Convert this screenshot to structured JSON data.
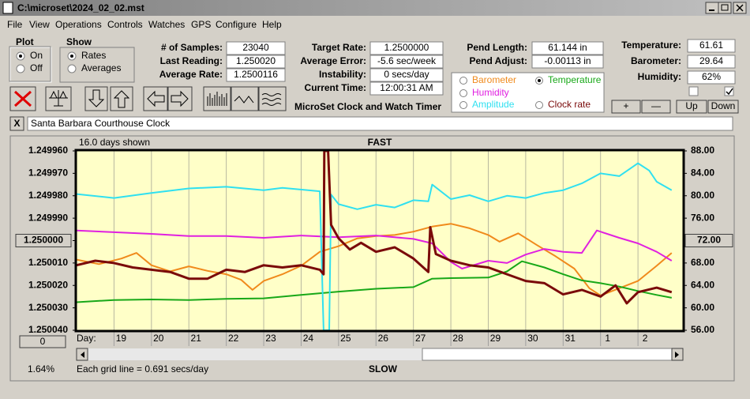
{
  "window": {
    "title": "C:\\microset\\2024_02_02.mst",
    "menu": [
      "File",
      "View",
      "Operations",
      "Controls",
      "Watches",
      "GPS",
      "Configure",
      "Help"
    ]
  },
  "plot_group": {
    "title": "Plot",
    "options": [
      "On",
      "Off"
    ]
  },
  "show_group": {
    "title": "Show",
    "options": [
      "Rates",
      "Averages"
    ]
  },
  "stats": [
    [
      "# of Samples:",
      "23040"
    ],
    [
      "Last Reading:",
      "1.250020"
    ],
    [
      "Average Rate:",
      "1.2500116"
    ]
  ],
  "rates": [
    [
      "Target Rate:",
      "1.2500000"
    ],
    [
      "Average Error:",
      "-5.6 sec/week"
    ],
    [
      "Instability:",
      "0 secs/day"
    ],
    [
      "Current Time:",
      "12:00:31 AM"
    ]
  ],
  "app_name": "MicroSet Clock and Watch Timer",
  "pendulum": [
    [
      "Pend Length:",
      "61.144 in"
    ],
    [
      "Pend Adjust:",
      "-0.00113 in"
    ]
  ],
  "sensors": [
    [
      "Temperature:",
      "61.61"
    ],
    [
      "Barometer:",
      "29.64"
    ],
    [
      "Humidity:",
      "62%"
    ]
  ],
  "sensor_buttons": [
    "+",
    "—",
    "Up",
    "Down"
  ],
  "close_label": "X",
  "clock_name": "Santa Barbara Courthouse Clock",
  "chart_data": {
    "type": "line",
    "days_shown": "16.0 days shown",
    "top_label": "FAST",
    "bottom_label": "SLOW",
    "x_label": "Day:",
    "offset_button": "0",
    "percent": "1.64%",
    "grid_note": "Each grid line = 0.691 secs/day",
    "xlim": [
      0,
      16.2
    ],
    "xticks": [
      {
        "value": 1,
        "label": "19"
      },
      {
        "value": 2,
        "label": "20"
      },
      {
        "value": 3,
        "label": "21"
      },
      {
        "value": 4,
        "label": "22"
      },
      {
        "value": 5,
        "label": "23"
      },
      {
        "value": 6,
        "label": "24"
      },
      {
        "value": 7,
        "label": "25"
      },
      {
        "value": 8,
        "label": "26"
      },
      {
        "value": 9,
        "label": "27"
      },
      {
        "value": 10,
        "label": "28"
      },
      {
        "value": 11,
        "label": "29"
      },
      {
        "value": 12,
        "label": "30"
      },
      {
        "value": 13,
        "label": "31"
      },
      {
        "value": 14,
        "label": "1"
      },
      {
        "value": 15,
        "label": "2"
      }
    ],
    "ylim": [
      1.25004,
      1.24996
    ],
    "yticks": [
      {
        "value": 1.24996,
        "label": "1.249960"
      },
      {
        "value": 1.24997,
        "label": "1.249970"
      },
      {
        "value": 1.24998,
        "label": "1.249980"
      },
      {
        "value": 1.24999,
        "label": "1.249990"
      },
      {
        "value": 1.25,
        "label": "1.250000"
      },
      {
        "value": 1.25001,
        "label": "1.250010"
      },
      {
        "value": 1.25002,
        "label": "1.250020"
      },
      {
        "value": 1.25003,
        "label": "1.250030"
      },
      {
        "value": 1.25004,
        "label": "1.250040"
      }
    ],
    "y2lim": [
      56,
      88
    ],
    "y2ticks": [
      {
        "value": 88,
        "label": "88.00"
      },
      {
        "value": 84,
        "label": "84.00"
      },
      {
        "value": 80,
        "label": "80.00"
      },
      {
        "value": 76,
        "label": "76.00"
      },
      {
        "value": 72,
        "label": "72.00"
      },
      {
        "value": 68,
        "label": "68.00"
      },
      {
        "value": 64,
        "label": "64.00"
      },
      {
        "value": 60,
        "label": "60.00"
      },
      {
        "value": 56,
        "label": "56.00"
      }
    ],
    "selected_series": "Temperature",
    "series": [
      {
        "name": "Barometer",
        "color": "#f08a1c",
        "axis": "y2",
        "x": [
          0,
          0.6,
          1.2,
          1.6,
          2,
          2.5,
          3,
          3.5,
          4,
          4.4,
          4.7,
          5,
          5.5,
          6,
          6.5,
          7,
          7.5,
          8,
          8.5,
          9,
          9.5,
          10,
          10.5,
          11,
          11.3,
          11.8,
          12.3,
          12.8,
          13.3,
          13.7,
          14,
          14.5,
          15,
          15.5,
          15.9
        ],
        "values": [
          68.6,
          67.8,
          68.8,
          69.8,
          67.6,
          66.5,
          67.4,
          66.6,
          66,
          65,
          63.2,
          64.8,
          66,
          67.5,
          70,
          71,
          72.4,
          72.8,
          73,
          73.6,
          74.5,
          75,
          74.2,
          73,
          71.8,
          73.3,
          71.2,
          69.2,
          67,
          63.5,
          62.2,
          63.5,
          64.8,
          67.5,
          69.8
        ]
      },
      {
        "name": "Temperature",
        "color": "#18a818",
        "axis": "y2",
        "x": [
          0,
          1,
          2,
          3,
          4,
          5,
          6,
          7,
          8,
          9,
          9.5,
          10,
          11,
          11.5,
          11.9,
          12.5,
          13,
          13.5,
          14,
          14.5,
          15,
          15.5,
          15.9
        ],
        "values": [
          61,
          61.4,
          61.5,
          61.4,
          61.6,
          61.7,
          62.3,
          62.9,
          63.4,
          63.7,
          65.2,
          65.3,
          65.4,
          66.5,
          68.3,
          67.2,
          66,
          64.9,
          64.4,
          63.8,
          63,
          62.3,
          61.8
        ]
      },
      {
        "name": "Humidity",
        "color": "#e020e0",
        "axis": "y2",
        "x": [
          0,
          1,
          2,
          3,
          4,
          5,
          6,
          7,
          8,
          9,
          9.5,
          10,
          10.3,
          11,
          11.5,
          12,
          12.5,
          13,
          13.5,
          13.9,
          14.5,
          15,
          15.5,
          15.9
        ],
        "values": [
          73.8,
          73.5,
          73.2,
          72.8,
          72.8,
          72.5,
          72.9,
          72.6,
          72.9,
          72.3,
          71.5,
          68.2,
          67,
          68.4,
          68,
          69.5,
          70.5,
          70,
          69.8,
          73.8,
          72.5,
          71.5,
          70,
          68.4
        ]
      },
      {
        "name": "Amplitude",
        "color": "#30e0f0",
        "axis": "y2",
        "x": [
          0,
          1,
          2,
          3,
          4,
          5,
          5.5,
          6.5,
          6.6,
          6.75,
          6.8,
          7,
          7.5,
          8,
          8.5,
          9,
          9.4,
          9.5,
          10,
          10.5,
          11,
          11.5,
          12,
          12.5,
          13,
          13.5,
          14,
          14.5,
          15,
          15.3,
          15.5,
          15.9
        ],
        "values": [
          80.3,
          79.6,
          80.5,
          81.3,
          81.6,
          81,
          81.4,
          80.8,
          56,
          56,
          80.2,
          78.5,
          77.6,
          78.4,
          77.9,
          79.2,
          79,
          82,
          79.4,
          80.1,
          79,
          80,
          79.6,
          80.5,
          81,
          82.2,
          84,
          83.5,
          85.8,
          84.5,
          82.5,
          81
        ]
      },
      {
        "name": "Clock rate",
        "color": "#7a0a0a",
        "axis": "y",
        "x": [
          0,
          0.5,
          1,
          1.5,
          2,
          2.5,
          3,
          3.5,
          4,
          4.5,
          5,
          5.5,
          6,
          6.5,
          6.6,
          6.62,
          6.72,
          6.8,
          7,
          7.3,
          7.6,
          8,
          8.5,
          9,
          9.4,
          9.45,
          9.6,
          10,
          10.5,
          11,
          11.5,
          12,
          12.5,
          13,
          13.5,
          14,
          14.4,
          14.7,
          15,
          15.5,
          15.9
        ],
        "values": [
          1.250011,
          1.250009,
          1.25001,
          1.250012,
          1.250013,
          1.250014,
          1.250017,
          1.250017,
          1.250013,
          1.250014,
          1.250011,
          1.250012,
          1.250011,
          1.250013,
          1.250015,
          1.24996,
          1.24996,
          1.249993,
          1.249999,
          1.250004,
          1.250001,
          1.250005,
          1.250003,
          1.250008,
          1.250014,
          1.249994,
          1.250006,
          1.250009,
          1.250011,
          1.250012,
          1.250015,
          1.250018,
          1.250019,
          1.250024,
          1.250022,
          1.250025,
          1.25002,
          1.250028,
          1.250023,
          1.250021,
          1.250023
        ]
      }
    ]
  }
}
